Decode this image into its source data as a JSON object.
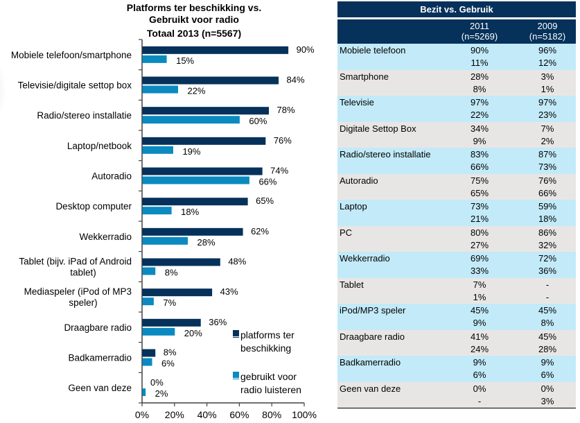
{
  "chart_data": {
    "type": "bar",
    "orientation": "horizontal",
    "title": [
      "Platforms ter beschikking vs.",
      "Gebruikt voor radio"
    ],
    "subtitle": "Totaal 2013 (n=5567)",
    "categories": [
      [
        "Mobiele telefoon/smartphone"
      ],
      [
        "Televisie/digitale settop box"
      ],
      [
        "Radio/stereo installatie"
      ],
      [
        "Laptop/netbook"
      ],
      [
        "Autoradio"
      ],
      [
        "Desktop computer"
      ],
      [
        "Wekkerradio"
      ],
      [
        "Tablet (bijv. iPad of Android",
        "tablet)"
      ],
      [
        "Mediaspeler (iPod of MP3",
        "speler)"
      ],
      [
        "Draagbare radio"
      ],
      [
        "Badkamerradio"
      ],
      [
        "Geen van deze"
      ]
    ],
    "series": [
      {
        "name": "platforms ter beschikking",
        "color": "#05315A",
        "values": [
          90,
          84,
          78,
          76,
          74,
          65,
          62,
          48,
          43,
          36,
          8,
          0
        ]
      },
      {
        "name": "gebruikt voor radio luisteren",
        "color": "#0B8AC0",
        "values": [
          15,
          22,
          60,
          19,
          66,
          18,
          28,
          8,
          7,
          20,
          6,
          2
        ]
      }
    ],
    "legend": {
      "placement": "bottom-right",
      "entries": [
        [
          "platforms ter",
          "beschikking"
        ],
        [
          "gebruikt voor",
          "radio luisteren"
        ]
      ]
    },
    "xlim": [
      0,
      100
    ],
    "xticks": [
      "0%",
      "20%",
      "40%",
      "60%",
      "80%",
      "100%"
    ],
    "value_suffix": "%",
    "grid": false
  },
  "table": {
    "title": "Bezit vs. Gebruik",
    "columns": [
      {
        "year": "2011",
        "n": "(n=5269)"
      },
      {
        "year": "2009",
        "n": "(n=5182)"
      }
    ],
    "rows": [
      {
        "label": "Mobiele telefoon",
        "bezit": [
          "90%",
          "96%"
        ],
        "gebruik": [
          "11%",
          "12%"
        ]
      },
      {
        "label": "Smartphone",
        "bezit": [
          "28%",
          "3%"
        ],
        "gebruik": [
          "8%",
          "1%"
        ]
      },
      {
        "label": "Televisie",
        "bezit": [
          "97%",
          "97%"
        ],
        "gebruik": [
          "22%",
          "23%"
        ]
      },
      {
        "label": "Digitale Settop Box",
        "bezit": [
          "34%",
          "7%"
        ],
        "gebruik": [
          "9%",
          "2%"
        ]
      },
      {
        "label": "Radio/stereo installatie",
        "bezit": [
          "83%",
          "87%"
        ],
        "gebruik": [
          "66%",
          "73%"
        ]
      },
      {
        "label": "Autoradio",
        "bezit": [
          "75%",
          "76%"
        ],
        "gebruik": [
          "65%",
          "66%"
        ]
      },
      {
        "label": "Laptop",
        "bezit": [
          "73%",
          "59%"
        ],
        "gebruik": [
          "21%",
          "18%"
        ]
      },
      {
        "label": "PC",
        "bezit": [
          "80%",
          "86%"
        ],
        "gebruik": [
          "27%",
          "32%"
        ]
      },
      {
        "label": "Wekkerradio",
        "bezit": [
          "69%",
          "72%"
        ],
        "gebruik": [
          "33%",
          "36%"
        ]
      },
      {
        "label": "Tablet",
        "bezit": [
          "7%",
          "-"
        ],
        "gebruik": [
          "1%",
          "-"
        ]
      },
      {
        "label": "iPod/MP3 speler",
        "bezit": [
          "45%",
          "45%"
        ],
        "gebruik": [
          "9%",
          "8%"
        ]
      },
      {
        "label": "Draagbare radio",
        "bezit": [
          "41%",
          "45%"
        ],
        "gebruik": [
          "24%",
          "28%"
        ]
      },
      {
        "label": "Badkamerradio",
        "bezit": [
          "9%",
          "9%"
        ],
        "gebruik": [
          "6%",
          "6%"
        ]
      },
      {
        "label": "Geen van deze",
        "bezit": [
          "0%",
          "0%"
        ],
        "gebruik": [
          "-",
          "3%"
        ]
      }
    ]
  }
}
